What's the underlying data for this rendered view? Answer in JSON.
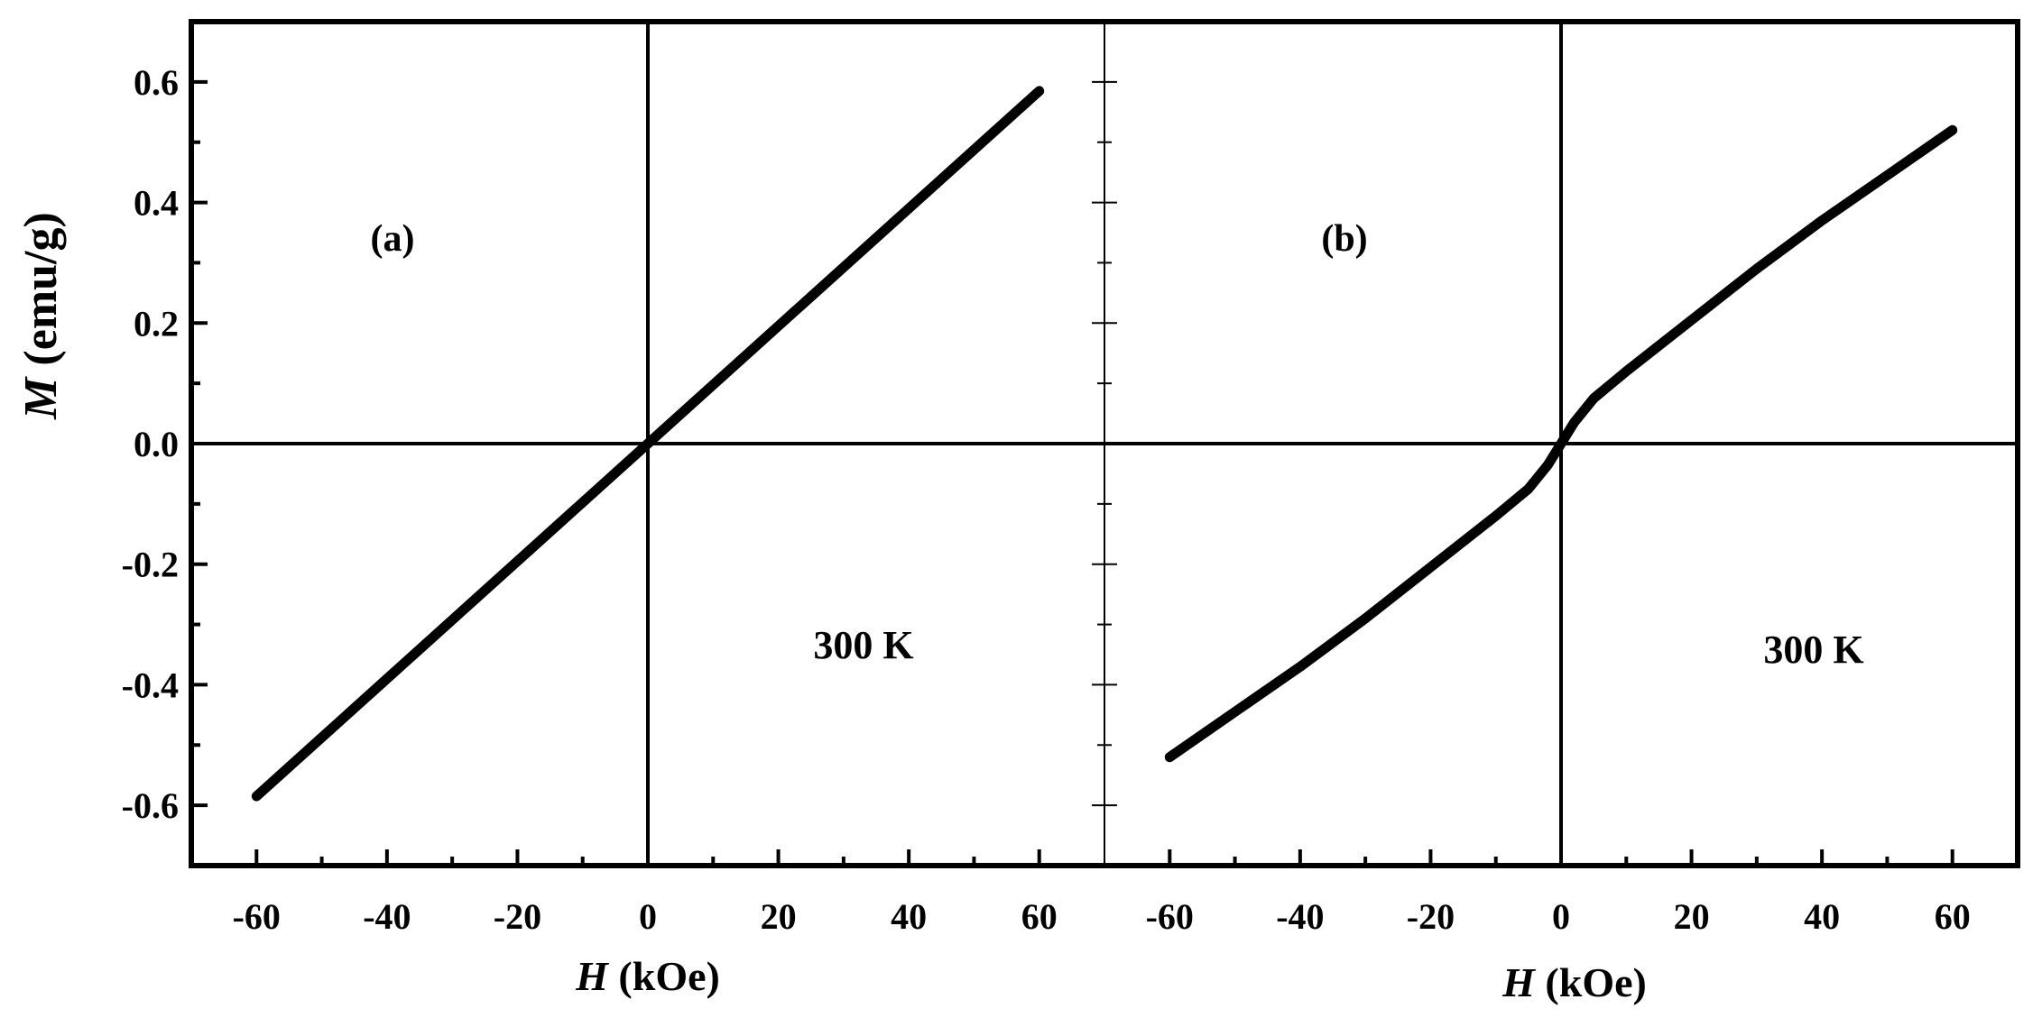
{
  "chart_data": {
    "type": "line",
    "ylabel": {
      "symbol": "M",
      "unit": " (emu/g)"
    },
    "ylim": [
      -0.7,
      0.7
    ],
    "yticks": [
      "0.6",
      "0.4",
      "0.2",
      "0.0",
      "-0.2",
      "-0.4",
      "-0.6"
    ],
    "ytick_values": [
      0.6,
      0.4,
      0.2,
      0.0,
      -0.2,
      -0.4,
      -0.6
    ],
    "grid": false,
    "panels": [
      {
        "label": "(a)",
        "annotation": "300 K",
        "xlabel": {
          "symbol": "H",
          "unit": " (kOe)"
        },
        "xlim": [
          -70,
          70
        ],
        "xticks": [
          "-60",
          "-40",
          "-20",
          "0",
          "20",
          "40",
          "60"
        ],
        "xtick_values": [
          -60,
          -40,
          -20,
          0,
          20,
          40,
          60
        ],
        "series": [
          {
            "x": [
              -60,
              -40,
              -20,
              0,
              20,
              40,
              60
            ],
            "y": [
              -0.585,
              -0.39,
              -0.195,
              0.0,
              0.195,
              0.39,
              0.585
            ]
          }
        ]
      },
      {
        "label": "(b)",
        "annotation": "300 K",
        "xlabel": {
          "symbol": "H",
          "unit": " (kOe)"
        },
        "xlim": [
          -70,
          70
        ],
        "xticks": [
          "-60",
          "-40",
          "-20",
          "0",
          "20",
          "40",
          "60"
        ],
        "xtick_values": [
          -60,
          -40,
          -20,
          0,
          20,
          40,
          60
        ],
        "series": [
          {
            "x": [
              -60,
              -50,
              -40,
              -30,
              -20,
              -10,
              -5,
              -2,
              0,
              2,
              5,
              10,
              20,
              30,
              40,
              50,
              60
            ],
            "y": [
              -0.52,
              -0.445,
              -0.37,
              -0.29,
              -0.205,
              -0.12,
              -0.075,
              -0.035,
              0.0,
              0.035,
              0.075,
              0.12,
              0.205,
              0.29,
              0.37,
              0.445,
              0.52
            ]
          }
        ]
      }
    ]
  }
}
